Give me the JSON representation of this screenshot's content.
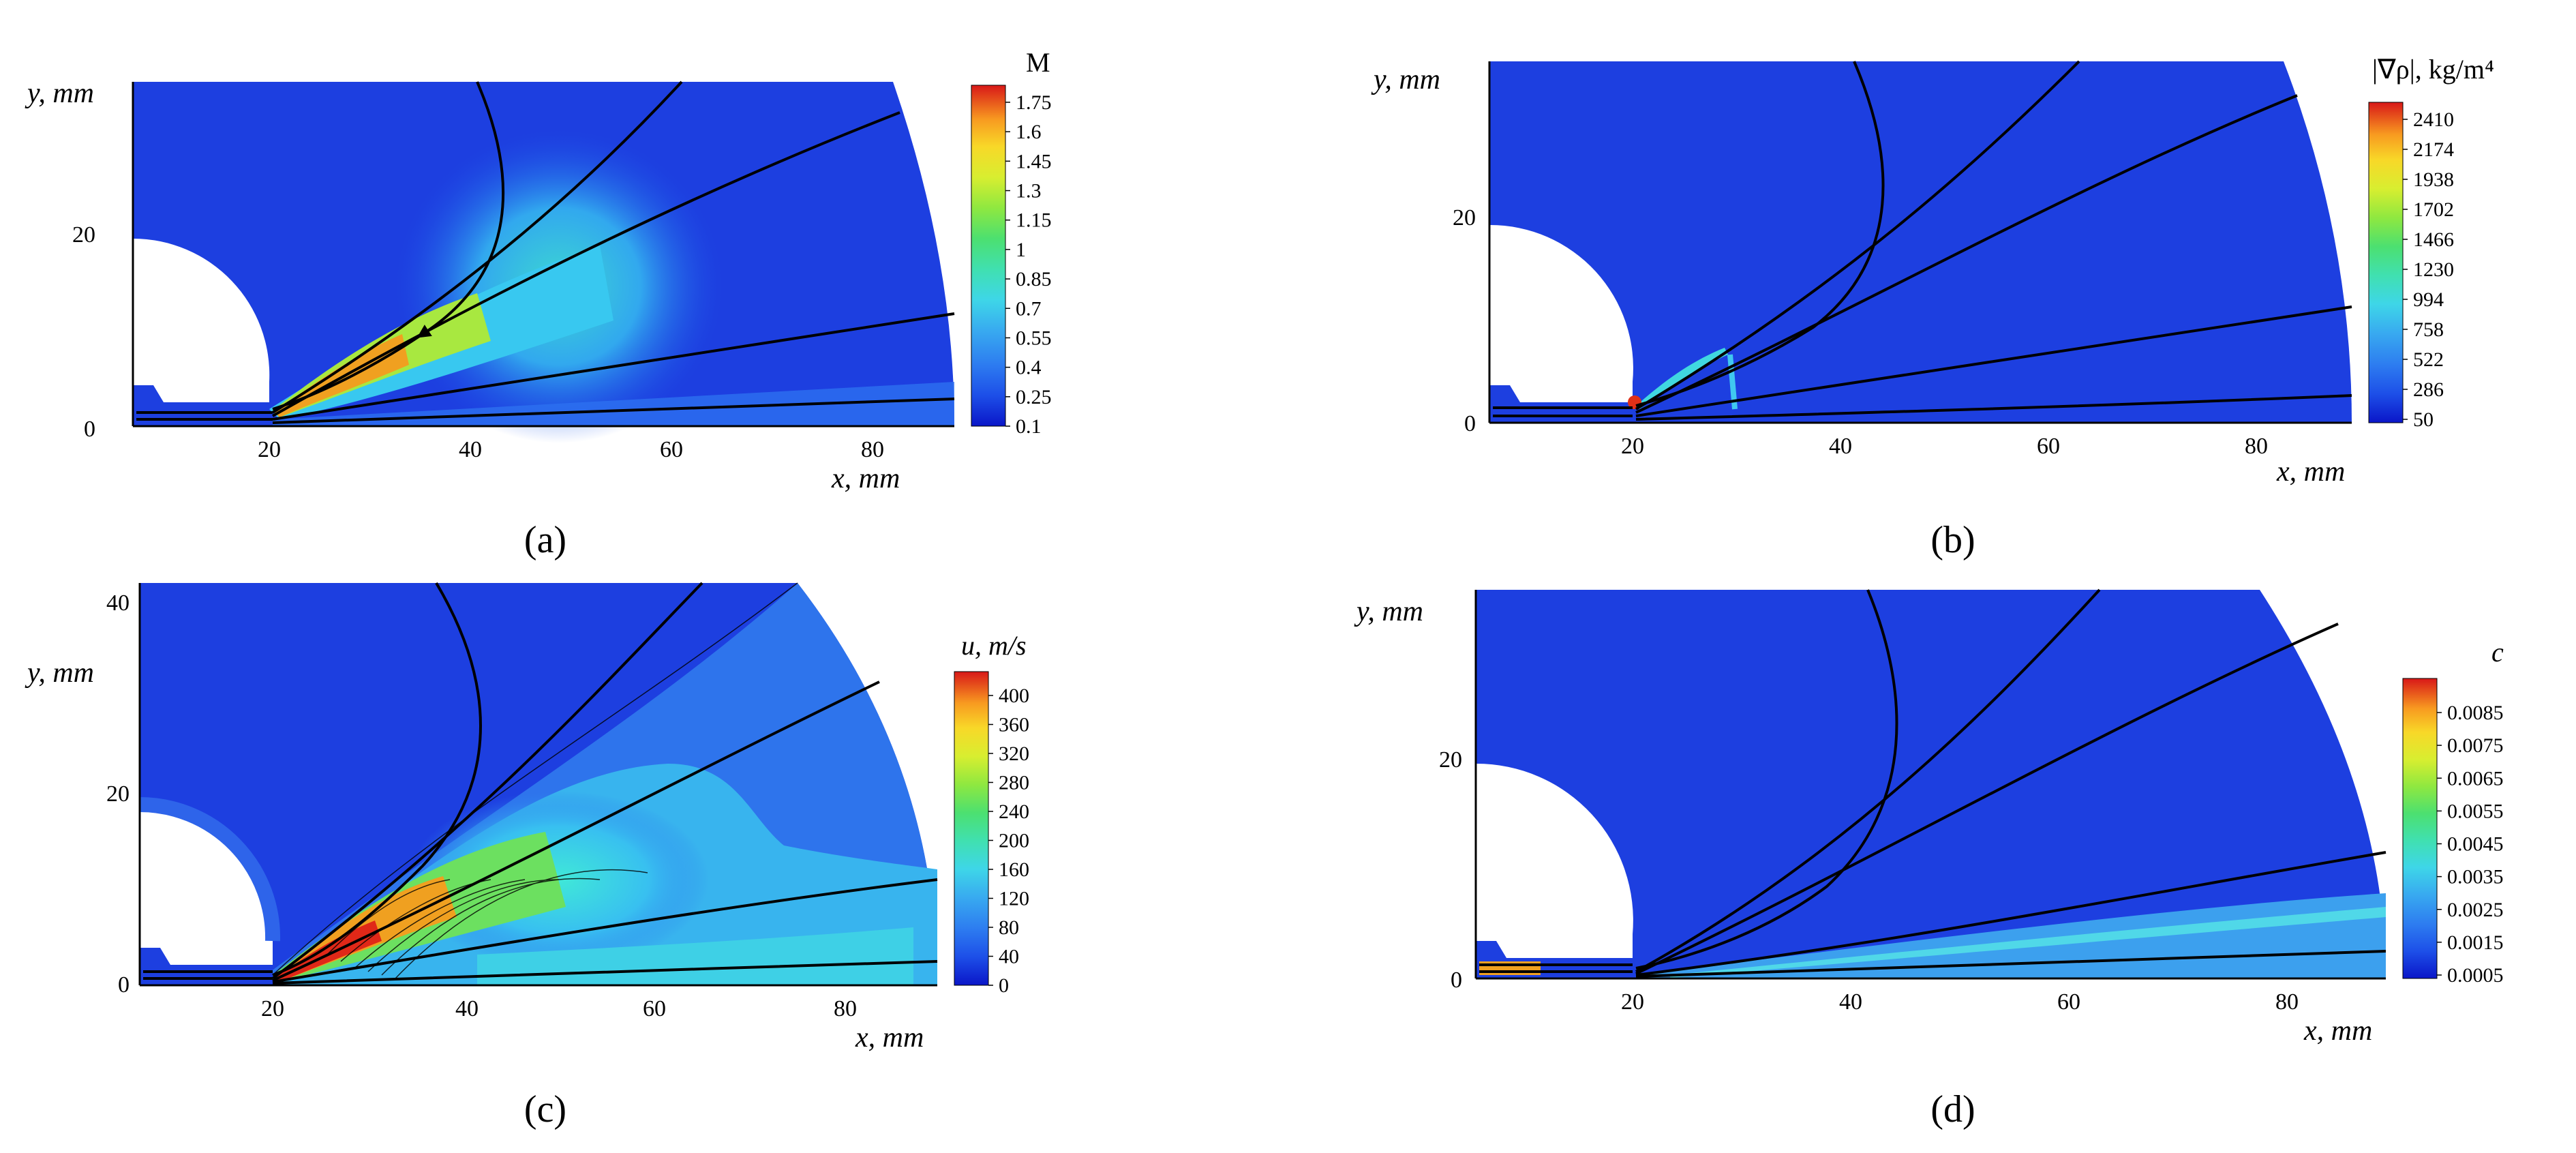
{
  "figure": {
    "panels": [
      {
        "caption": "(a)",
        "x_label": "x, mm",
        "y_label": "y, mm",
        "x_ticks": [
          "20",
          "40",
          "60",
          "80"
        ],
        "y_ticks": [
          "0",
          "20"
        ],
        "colorbar_title": "M",
        "colorbar_ticks": [
          "1.75",
          "1.6",
          "1.45",
          "1.3",
          "1.15",
          "1",
          "0.85",
          "0.7",
          "0.55",
          "0.4",
          "0.25",
          "0.1"
        ]
      },
      {
        "caption": "(b)",
        "x_label": "x, mm",
        "y_label": "y, mm",
        "x_ticks": [
          "20",
          "40",
          "60",
          "80"
        ],
        "y_ticks": [
          "0",
          "20"
        ],
        "colorbar_title": "|∇ρ|, kg/m⁴",
        "colorbar_ticks": [
          "2410",
          "2174",
          "1938",
          "1702",
          "1466",
          "1230",
          "994",
          "758",
          "522",
          "286",
          "50"
        ]
      },
      {
        "caption": "(c)",
        "x_label": "x, mm",
        "y_label": "y, mm",
        "x_ticks": [
          "20",
          "40",
          "60",
          "80"
        ],
        "y_ticks": [
          "0",
          "20",
          "40"
        ],
        "colorbar_title": "u, m/s",
        "colorbar_ticks": [
          "400",
          "360",
          "320",
          "280",
          "240",
          "200",
          "160",
          "120",
          "80",
          "40",
          "0"
        ]
      },
      {
        "caption": "(d)",
        "x_label": "x, mm",
        "y_label": "y, mm",
        "x_ticks": [
          "20",
          "40",
          "60",
          "80"
        ],
        "y_ticks": [
          "0",
          "20"
        ],
        "colorbar_title": "c",
        "colorbar_ticks": [
          "0.0085",
          "0.0075",
          "0.0065",
          "0.0055",
          "0.0045",
          "0.0035",
          "0.0025",
          "0.0015",
          "0.0005"
        ]
      }
    ],
    "colors": {
      "background_flow": "#1c3fe0",
      "colormap": [
        "#0a16c8",
        "#1d4fe8",
        "#2d7cf0",
        "#38aaf0",
        "#3ed6e8",
        "#40e0b0",
        "#4ce070",
        "#8fe840",
        "#d8ee30",
        "#f8d828",
        "#f89a20",
        "#f05a18",
        "#d81818"
      ]
    }
  }
}
